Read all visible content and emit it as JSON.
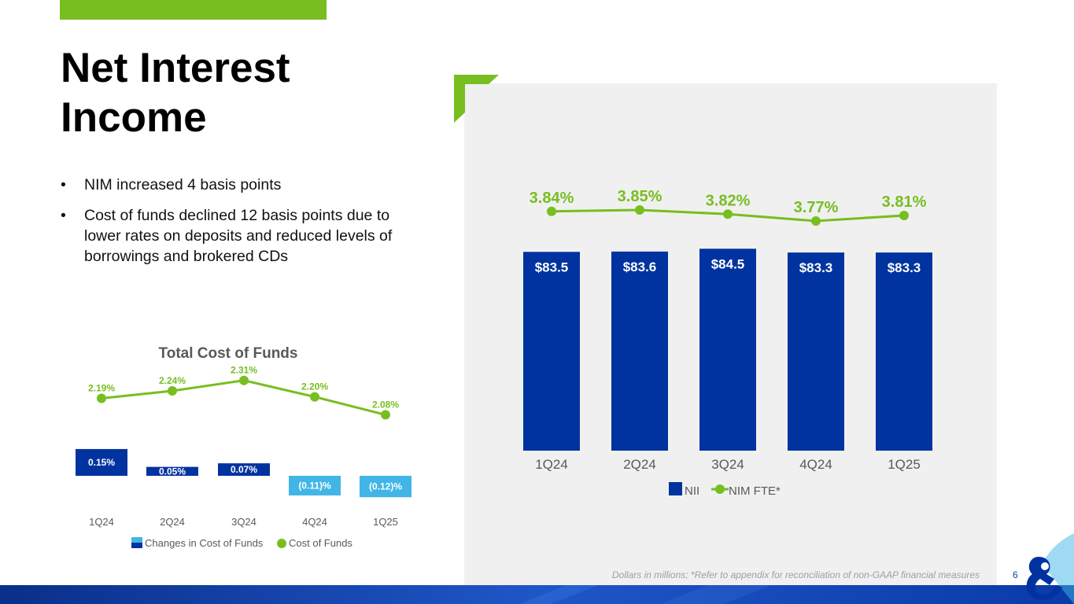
{
  "slide": {
    "title": "Net Interest Income",
    "bullets": [
      "NIM increased 4 basis points",
      "Cost of funds declined 12 basis points due to lower rates on deposits and reduced levels of borrowings and brokered CDs"
    ],
    "bullet_glyph": "•",
    "footnote": "Dollars in millions; *Refer to appendix for reconciliation of non-GAAP financial measures",
    "page_number": "6",
    "colors": {
      "accent_green": "#78be20",
      "nii_blue": "#0033a0",
      "light_blue": "#41b6e6",
      "panel_gray": "#f0f0f0",
      "nim_green": "#78be20"
    }
  },
  "chart_data": [
    {
      "type": "bar",
      "title": "",
      "categories": [
        "1Q24",
        "2Q24",
        "3Q24",
        "4Q24",
        "1Q25"
      ],
      "series": [
        {
          "name": "NII",
          "kind": "bar",
          "values": [
            83.5,
            83.6,
            84.5,
            83.3,
            83.3
          ],
          "labels": [
            "$83.5",
            "$83.6",
            "$84.5",
            "$83.3",
            "$83.3"
          ],
          "color": "#0033a0"
        },
        {
          "name": "NIM FTE*",
          "kind": "line",
          "values": [
            3.84,
            3.85,
            3.82,
            3.77,
            3.81
          ],
          "labels": [
            "3.84%",
            "3.85%",
            "3.82%",
            "3.77%",
            "3.81%"
          ],
          "color": "#78be20"
        }
      ],
      "legend": [
        "NII",
        "NIM FTE*"
      ],
      "legend_position": "bottom",
      "grid": false
    },
    {
      "type": "bar",
      "title": "Total Cost of Funds",
      "categories": [
        "1Q24",
        "2Q24",
        "3Q24",
        "4Q24",
        "1Q25"
      ],
      "series": [
        {
          "name": "Changes in Cost of Funds",
          "kind": "bar",
          "values": [
            0.15,
            0.05,
            0.07,
            -0.11,
            -0.12
          ],
          "labels": [
            "0.15%",
            "0.05%",
            "0.07%",
            "(0.11)%",
            "(0.12)%"
          ],
          "colors": [
            "#0033a0",
            "#0033a0",
            "#0033a0",
            "#41b6e6",
            "#41b6e6"
          ]
        },
        {
          "name": "Cost of Funds",
          "kind": "line",
          "values": [
            2.19,
            2.24,
            2.31,
            2.2,
            2.08
          ],
          "labels": [
            "2.19%",
            "2.24%",
            "2.31%",
            "2.20%",
            "2.08%"
          ],
          "color": "#78be20"
        }
      ],
      "legend": [
        "Changes in Cost of Funds",
        "Cost of Funds"
      ],
      "legend_position": "bottom",
      "grid": false
    }
  ]
}
